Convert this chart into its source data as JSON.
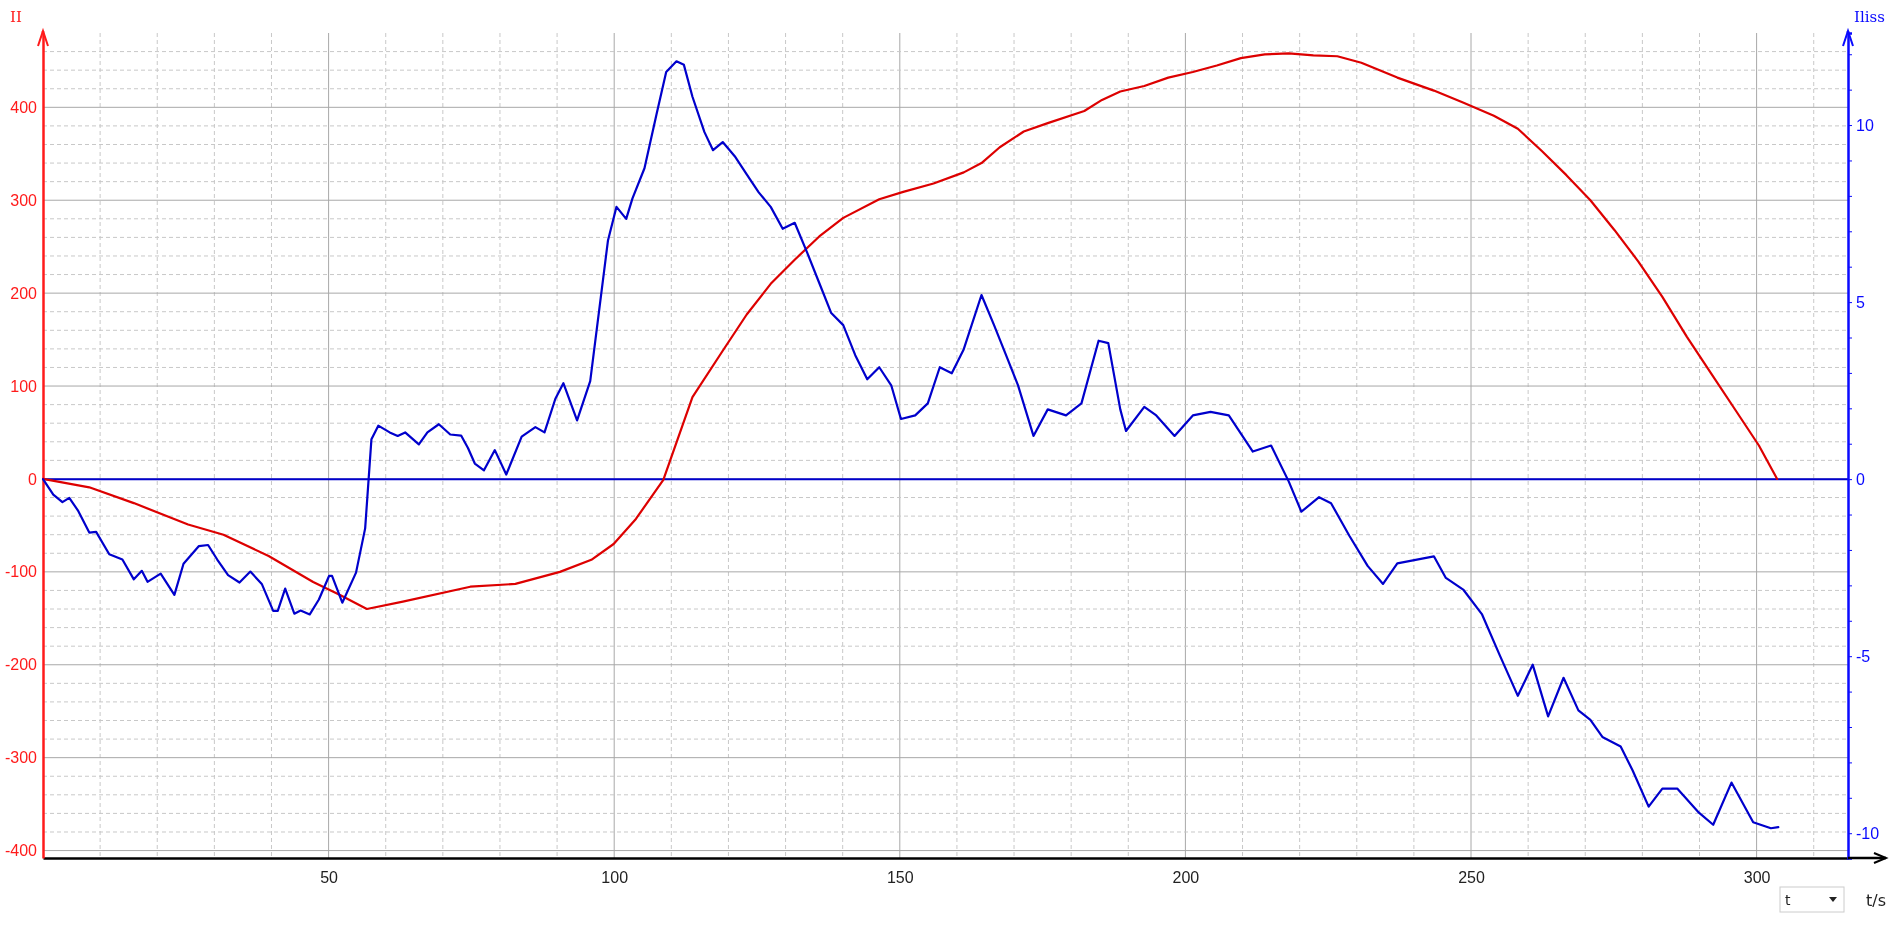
{
  "chart_data": {
    "type": "line",
    "xlabel": "t/s",
    "ylabel": "II",
    "y2label": "Iliss",
    "annotations": [
      "t"
    ],
    "grid": true,
    "xlim": [
      0,
      316
    ],
    "xticks": [
      {
        "value": 10,
        "label": null
      },
      {
        "value": 20,
        "label": null
      },
      {
        "value": 30,
        "label": null
      },
      {
        "value": 40,
        "label": null
      },
      50,
      {
        "value": 60,
        "label": null
      },
      {
        "value": 70,
        "label": null
      },
      {
        "value": 80,
        "label": null
      },
      {
        "value": 90,
        "label": null
      },
      100,
      {
        "value": 110,
        "label": null
      },
      {
        "value": 120,
        "label": null
      },
      {
        "value": 130,
        "label": null
      },
      {
        "value": 140,
        "label": null
      },
      150,
      {
        "value": 160,
        "label": null
      },
      {
        "value": 170,
        "label": null
      },
      {
        "value": 180,
        "label": null
      },
      {
        "value": 190,
        "label": null
      },
      200,
      {
        "value": 210,
        "label": null
      },
      {
        "value": 220,
        "label": null
      },
      {
        "value": 230,
        "label": null
      },
      {
        "value": 240,
        "label": null
      },
      250,
      {
        "value": 260,
        "label": null
      },
      {
        "value": 270,
        "label": null
      },
      {
        "value": 280,
        "label": null
      },
      {
        "value": 290,
        "label": null
      },
      300,
      {
        "value": 310,
        "label": null
      }
    ],
    "ylim": [
      -408,
      480
    ],
    "yticks": [
      -400,
      {
        "value": -380,
        "label": null
      },
      {
        "value": -360,
        "label": null
      },
      {
        "value": -340,
        "label": null
      },
      {
        "value": -320,
        "label": null
      },
      -300,
      {
        "value": -280,
        "label": null
      },
      {
        "value": -260,
        "label": null
      },
      {
        "value": -240,
        "label": null
      },
      {
        "value": -220,
        "label": null
      },
      -200,
      {
        "value": -180,
        "label": null
      },
      {
        "value": -160,
        "label": null
      },
      {
        "value": -140,
        "label": null
      },
      {
        "value": -120,
        "label": null
      },
      -100,
      {
        "value": -80,
        "label": null
      },
      {
        "value": -60,
        "label": null
      },
      {
        "value": -40,
        "label": null
      },
      {
        "value": -20,
        "label": null
      },
      0,
      {
        "value": 20,
        "label": null
      },
      {
        "value": 40,
        "label": null
      },
      {
        "value": 60,
        "label": null
      },
      {
        "value": 80,
        "label": null
      },
      100,
      {
        "value": 120,
        "label": null
      },
      {
        "value": 140,
        "label": null
      },
      {
        "value": 160,
        "label": null
      },
      {
        "value": 180,
        "label": null
      },
      200,
      {
        "value": 220,
        "label": null
      },
      {
        "value": 240,
        "label": null
      },
      {
        "value": 260,
        "label": null
      },
      {
        "value": 280,
        "label": null
      },
      300,
      {
        "value": 320,
        "label": null
      },
      {
        "value": 340,
        "label": null
      },
      {
        "value": 360,
        "label": null
      },
      {
        "value": 380,
        "label": null
      },
      400,
      {
        "value": 420,
        "label": null
      },
      {
        "value": 440,
        "label": null
      },
      {
        "value": 460,
        "label": null
      }
    ],
    "y2lim": [
      -10.7,
      12.6
    ],
    "y2ticks": [
      -10,
      {
        "value": -9,
        "label": null
      },
      {
        "value": -8,
        "label": null
      },
      {
        "value": -7,
        "label": null
      },
      {
        "value": -6,
        "label": null
      },
      -5,
      {
        "value": -4,
        "label": null
      },
      {
        "value": -3,
        "label": null
      },
      {
        "value": -2,
        "label": null
      },
      {
        "value": -1,
        "label": null
      },
      0,
      {
        "value": 1,
        "label": null
      },
      {
        "value": 2,
        "label": null
      },
      {
        "value": 3,
        "label": null
      },
      {
        "value": 4,
        "label": null
      },
      5,
      {
        "value": 6,
        "label": null
      },
      {
        "value": 7,
        "label": null
      },
      {
        "value": 8,
        "label": null
      },
      {
        "value": 9,
        "label": null
      },
      10,
      {
        "value": 11,
        "label": null
      },
      {
        "value": 12,
        "label": null
      }
    ],
    "ref_lines": [
      {
        "axis": "y2",
        "value": 0,
        "color": "#0000cc"
      }
    ],
    "series": [
      {
        "color": "#dd0000",
        "x": [
          0,
          8.1,
          15.9,
          25.4,
          31.6,
          39.5,
          47.3,
          52,
          56.7,
          63,
          74.8,
          82.7,
          90.5,
          96,
          99.9,
          103.8,
          108.6,
          113.7,
          119,
          123.2,
          127.4,
          131.6,
          135.9,
          140.1,
          146.4,
          150.6,
          155.9,
          161.2,
          164.3,
          167.5,
          171.7,
          175.9,
          182.3,
          185.4,
          188.6,
          192.8,
          197,
          201.3,
          205.5,
          209.7,
          213.9,
          218.1,
          222.4,
          226.6,
          230.8,
          237.1,
          243.5,
          248.7,
          254,
          258.2,
          262.4,
          266.7,
          270.9,
          275.1,
          279.3,
          283.5,
          287.8,
          292,
          296.2,
          300.4,
          303.6
        ],
        "values": [
          0,
          -9,
          -26,
          -49,
          -60,
          -83,
          -111,
          -125,
          -140,
          -132,
          -116,
          -113,
          -100,
          -87,
          -70,
          -43,
          -1,
          88,
          138,
          177,
          210,
          236,
          261,
          281,
          301,
          309,
          318,
          330,
          340,
          357,
          374,
          383,
          396,
          408,
          417,
          423,
          432,
          438,
          445,
          453,
          457,
          458,
          456,
          455,
          448,
          432,
          418,
          405,
          391,
          377,
          353,
          327,
          300,
          268,
          234,
          196,
          153,
          114,
          75,
          36,
          0
        ]
      },
      {
        "color": "#0000cc",
        "axis": "y2",
        "x": [
          0,
          1.8,
          3.4,
          4.6,
          6.1,
          8.1,
          9.3,
          11.6,
          13.9,
          15.9,
          17.3,
          18.3,
          20.6,
          23,
          24.6,
          27.3,
          28.9,
          30.5,
          32.4,
          34.4,
          36.3,
          38.3,
          40.3,
          41.1,
          42.4,
          44,
          45.1,
          46.7,
          48.3,
          50.1,
          50.6,
          52.4,
          54.8,
          56.4,
          57.5,
          58.7,
          60.7,
          62.1,
          63.4,
          65.8,
          67.3,
          69.3,
          71.3,
          73.2,
          74.4,
          75.6,
          77.2,
          79.1,
          81.1,
          83.8,
          86.2,
          87.8,
          89.7,
          91.1,
          93.5,
          95.8,
          98.9,
          100.4,
          102.1,
          103.2,
          105.3,
          107.4,
          109.1,
          110.9,
          112.2,
          113.7,
          115.8,
          117.3,
          119,
          121.1,
          123.2,
          125.3,
          127.4,
          129.5,
          131.6,
          133.8,
          135.9,
          138,
          140.1,
          142.2,
          144.3,
          146.4,
          148.5,
          150.2,
          152.7,
          154.9,
          157,
          159.1,
          161.2,
          164.3,
          166.5,
          168.6,
          170.7,
          173.4,
          175.9,
          179.1,
          181.8,
          184.8,
          186.5,
          188.6,
          189.6,
          192.8,
          194.9,
          198.1,
          201.3,
          204.4,
          207.6,
          211.8,
          215,
          218.1,
          220.3,
          223.4,
          225.5,
          228.7,
          231.9,
          234.6,
          237.1,
          240.3,
          243.5,
          245.6,
          248.7,
          251.9,
          255.1,
          258.2,
          260.8,
          263.5,
          266.2,
          268.8,
          270.9,
          273,
          276.2,
          278.3,
          281.1,
          283.5,
          286.1,
          289.9,
          292.4,
          295.6,
          299.4,
          302.5,
          303.8
        ],
        "values": [
          0,
          -0.44,
          -0.65,
          -0.53,
          -0.88,
          -1.51,
          -1.49,
          -2.12,
          -2.27,
          -2.83,
          -2.59,
          -2.9,
          -2.67,
          -3.27,
          -2.39,
          -1.89,
          -1.86,
          -2.27,
          -2.71,
          -2.92,
          -2.61,
          -2.96,
          -3.72,
          -3.72,
          -3.09,
          -3.8,
          -3.71,
          -3.82,
          -3.4,
          -2.73,
          -2.73,
          -3.49,
          -2.64,
          -1.39,
          1.13,
          1.51,
          1.32,
          1.22,
          1.32,
          0.98,
          1.32,
          1.55,
          1.26,
          1.23,
          0.88,
          0.44,
          0.25,
          0.82,
          0.13,
          1.2,
          1.47,
          1.32,
          2.27,
          2.71,
          1.66,
          2.77,
          6.73,
          7.69,
          7.35,
          7.93,
          8.78,
          10.3,
          11.5,
          11.8,
          11.7,
          10.8,
          9.8,
          9.29,
          9.52,
          9.12,
          8.61,
          8.1,
          7.69,
          7.07,
          7.24,
          6.39,
          5.54,
          4.69,
          4.35,
          3.5,
          2.82,
          3.16,
          2.65,
          1.7,
          1.8,
          2.14,
          3.16,
          2.99,
          3.67,
          5.2,
          4.35,
          3.5,
          2.65,
          1.22,
          1.97,
          1.8,
          2.14,
          3.91,
          3.84,
          1.97,
          1.36,
          2.04,
          1.8,
          1.22,
          1.8,
          1.9,
          1.8,
          0.78,
          0.95,
          -0.07,
          -0.92,
          -0.51,
          -0.68,
          -1.6,
          -2.45,
          -2.96,
          -2.38,
          -2.28,
          -2.18,
          -2.79,
          -3.13,
          -3.81,
          -5,
          -6.12,
          -5.24,
          -6.7,
          -5.61,
          -6.53,
          -6.8,
          -7.28,
          -7.55,
          -8.23,
          -9.25,
          -8.74,
          -8.74,
          -9.42,
          -9.76,
          -8.57,
          -9.69,
          -9.86,
          -9.83
        ]
      }
    ]
  }
}
